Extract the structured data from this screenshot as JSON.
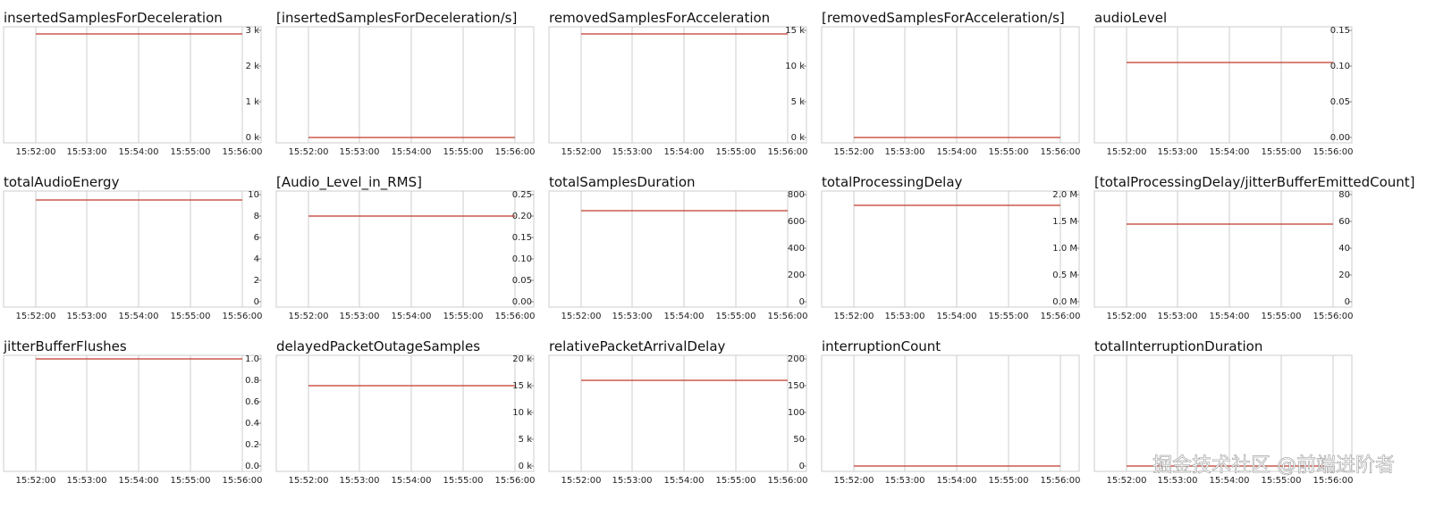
{
  "chart_data": [
    {
      "type": "line",
      "title": "insertedSamplesForDeceleration",
      "x": [
        "15:52:00",
        "15:53:00",
        "15:54:00",
        "15:55:00",
        "15:56:00"
      ],
      "series": [
        {
          "color": "#c0392b",
          "values": [
            2900,
            2900,
            2900,
            2900,
            2900
          ]
        }
      ],
      "ylim": [
        0,
        3000
      ],
      "yticks": [
        {
          "value": 0,
          "label": "0 k"
        },
        {
          "value": 1000,
          "label": "1 k"
        },
        {
          "value": 2000,
          "label": "2 k"
        },
        {
          "value": 3000,
          "label": "3 k"
        }
      ],
      "grid": true
    },
    {
      "type": "line",
      "title": "[insertedSamplesForDeceleration/s]",
      "x": [
        "15:52:00",
        "15:53:00",
        "15:54:00",
        "15:55:00",
        "15:56:00"
      ],
      "series": [
        {
          "color": "#c0392b",
          "values": [
            0,
            0,
            0,
            0,
            0
          ]
        }
      ],
      "ylim": [
        0,
        1
      ],
      "yticks": [],
      "grid": true
    },
    {
      "type": "line",
      "title": "removedSamplesForAcceleration",
      "x": [
        "15:52:00",
        "15:53:00",
        "15:54:00",
        "15:55:00",
        "15:56:00"
      ],
      "series": [
        {
          "color": "#c0392b",
          "values": [
            14500,
            14500,
            14500,
            14500,
            14500
          ]
        }
      ],
      "ylim": [
        0,
        15000
      ],
      "yticks": [
        {
          "value": 0,
          "label": "0 k"
        },
        {
          "value": 5000,
          "label": "5 k"
        },
        {
          "value": 10000,
          "label": "10 k"
        },
        {
          "value": 15000,
          "label": "15 k"
        }
      ],
      "grid": true
    },
    {
      "type": "line",
      "title": "[removedSamplesForAcceleration/s]",
      "x": [
        "15:52:00",
        "15:53:00",
        "15:54:00",
        "15:55:00",
        "15:56:00"
      ],
      "series": [
        {
          "color": "#c0392b",
          "values": [
            0,
            0,
            0,
            0,
            0
          ]
        }
      ],
      "ylim": [
        0,
        1
      ],
      "yticks": [],
      "grid": true
    },
    {
      "type": "line",
      "title": "audioLevel",
      "x": [
        "15:52:00",
        "15:53:00",
        "15:54:00",
        "15:55:00",
        "15:56:00"
      ],
      "series": [
        {
          "color": "#c0392b",
          "values": [
            0.105,
            0.105,
            0.105,
            0.105,
            0.105
          ]
        }
      ],
      "ylim": [
        0,
        0.15
      ],
      "yticks": [
        {
          "value": 0,
          "label": "0.00"
        },
        0.05,
        {
          "value": 0.1,
          "label": "0.10"
        },
        0.15
      ],
      "grid": true
    },
    {
      "type": "line",
      "title": "totalAudioEnergy",
      "x": [
        "15:52:00",
        "15:53:00",
        "15:54:00",
        "15:55:00",
        "15:56:00"
      ],
      "series": [
        {
          "color": "#c0392b",
          "values": [
            9.5,
            9.5,
            9.5,
            9.5,
            9.5
          ]
        }
      ],
      "ylim": [
        0,
        10
      ],
      "yticks": [
        0,
        2,
        4,
        6,
        8,
        10
      ],
      "grid": true
    },
    {
      "type": "line",
      "title": "[Audio_Level_in_RMS]",
      "x": [
        "15:52:00",
        "15:53:00",
        "15:54:00",
        "15:55:00",
        "15:56:00"
      ],
      "series": [
        {
          "color": "#c0392b",
          "values": [
            0.2,
            0.2,
            0.2,
            0.2,
            0.2
          ]
        }
      ],
      "ylim": [
        0,
        0.25
      ],
      "yticks": [
        {
          "value": 0,
          "label": "0.00"
        },
        0.05,
        {
          "value": 0.1,
          "label": "0.10"
        },
        0.15,
        {
          "value": 0.2,
          "label": "0.20"
        },
        0.25
      ],
      "grid": true
    },
    {
      "type": "line",
      "title": "totalSamplesDuration",
      "x": [
        "15:52:00",
        "15:53:00",
        "15:54:00",
        "15:55:00",
        "15:56:00"
      ],
      "series": [
        {
          "color": "#c0392b",
          "values": [
            680,
            680,
            680,
            680,
            680
          ]
        }
      ],
      "ylim": [
        0,
        800
      ],
      "yticks": [
        0,
        200,
        400,
        600,
        800
      ],
      "grid": true
    },
    {
      "type": "line",
      "title": "totalProcessingDelay",
      "x": [
        "15:52:00",
        "15:53:00",
        "15:54:00",
        "15:55:00",
        "15:56:00"
      ],
      "series": [
        {
          "color": "#c0392b",
          "values": [
            1800000,
            1800000,
            1800000,
            1800000,
            1800000
          ]
        }
      ],
      "ylim": [
        0,
        2000000
      ],
      "yticks": [
        {
          "value": 0,
          "label": "0.0 M"
        },
        {
          "value": 500000,
          "label": "0.5 M"
        },
        {
          "value": 1000000,
          "label": "1.0 M"
        },
        {
          "value": 1500000,
          "label": "1.5 M"
        },
        {
          "value": 2000000,
          "label": "2.0 M"
        }
      ],
      "grid": true
    },
    {
      "type": "line",
      "title": "[totalProcessingDelay/jitterBufferEmittedCount]",
      "x": [
        "15:52:00",
        "15:53:00",
        "15:54:00",
        "15:55:00",
        "15:56:00"
      ],
      "series": [
        {
          "color": "#c0392b",
          "values": [
            58,
            58,
            58,
            58,
            58
          ]
        }
      ],
      "ylim": [
        0,
        80
      ],
      "yticks": [
        0,
        20,
        40,
        60,
        80
      ],
      "grid": true
    },
    {
      "type": "line",
      "title": "jitterBufferFlushes",
      "x": [
        "15:52:00",
        "15:53:00",
        "15:54:00",
        "15:55:00",
        "15:56:00"
      ],
      "series": [
        {
          "color": "#c0392b",
          "values": [
            1,
            1,
            1,
            1,
            1
          ]
        }
      ],
      "ylim": [
        0,
        1
      ],
      "yticks": [
        {
          "value": 0,
          "label": "0.0"
        },
        0.2,
        0.4,
        0.6,
        0.8,
        {
          "value": 1,
          "label": "1.0"
        }
      ],
      "grid": true
    },
    {
      "type": "line",
      "title": "delayedPacketOutageSamples",
      "x": [
        "15:52:00",
        "15:53:00",
        "15:54:00",
        "15:55:00",
        "15:56:00"
      ],
      "series": [
        {
          "color": "#c0392b",
          "values": [
            15000,
            15000,
            15000,
            15000,
            15000
          ]
        }
      ],
      "ylim": [
        0,
        20000
      ],
      "yticks": [
        {
          "value": 0,
          "label": "0 k"
        },
        {
          "value": 5000,
          "label": "5 k"
        },
        {
          "value": 10000,
          "label": "10 k"
        },
        {
          "value": 15000,
          "label": "15 k"
        },
        {
          "value": 20000,
          "label": "20 k"
        }
      ],
      "grid": true
    },
    {
      "type": "line",
      "title": "relativePacketArrivalDelay",
      "x": [
        "15:52:00",
        "15:53:00",
        "15:54:00",
        "15:55:00",
        "15:56:00"
      ],
      "series": [
        {
          "color": "#c0392b",
          "values": [
            160,
            160,
            160,
            160,
            160
          ]
        }
      ],
      "ylim": [
        0,
        200
      ],
      "yticks": [
        0,
        50,
        100,
        150,
        200
      ],
      "grid": true
    },
    {
      "type": "line",
      "title": "interruptionCount",
      "x": [
        "15:52:00",
        "15:53:00",
        "15:54:00",
        "15:55:00",
        "15:56:00"
      ],
      "series": [
        {
          "color": "#c0392b",
          "values": [
            0,
            0,
            0,
            0,
            0
          ]
        }
      ],
      "ylim": [
        0,
        1
      ],
      "yticks": [],
      "grid": true
    },
    {
      "type": "line",
      "title": "totalInterruptionDuration",
      "x": [
        "15:52:00",
        "15:53:00",
        "15:54:00",
        "15:55:00",
        "15:56:00"
      ],
      "series": [
        {
          "color": "#c0392b",
          "values": [
            0,
            0,
            0,
            0,
            0
          ]
        }
      ],
      "ylim": [
        0,
        1
      ],
      "yticks": [],
      "grid": true
    }
  ],
  "watermark": "掘金技术社区 @前端进阶者"
}
